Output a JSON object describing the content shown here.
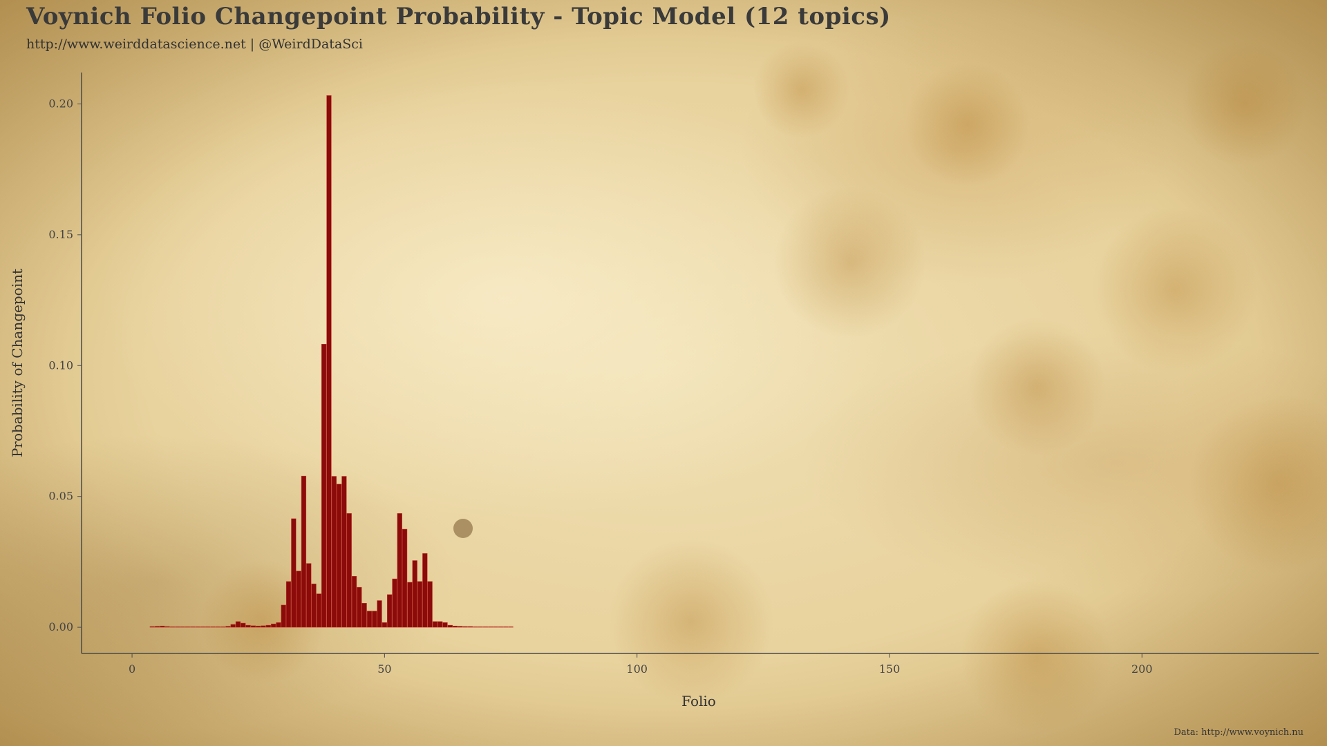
{
  "header": {
    "title": "Voynich Folio Changepoint Probability - Topic Model (12 topics)",
    "subtitle": "http://www.weirddatascience.net | @WeirdDataSci"
  },
  "footer": {
    "caption": "Data: http://www.voynich.nu"
  },
  "colors": {
    "bar_fill": "#8b0a0a",
    "bar_stroke": "#c0392b",
    "axis": "#4a4a4a",
    "text": "#333333"
  },
  "chart_data": {
    "type": "bar",
    "title": "Voynich Folio Changepoint Probability - Topic Model (12 topics)",
    "xlabel": "Folio",
    "ylabel": "Probability of Changepoint",
    "xlim": [
      -10,
      235
    ],
    "ylim": [
      -0.01,
      0.212
    ],
    "xticks": [
      {
        "value": 0,
        "label": "0"
      },
      {
        "value": 50,
        "label": "50"
      },
      {
        "value": 100,
        "label": "100"
      },
      {
        "value": 150,
        "label": "150"
      },
      {
        "value": 200,
        "label": "200"
      }
    ],
    "yticks": [
      {
        "value": 0.0,
        "label": "0.00"
      },
      {
        "value": 0.05,
        "label": "0.05"
      },
      {
        "value": 0.1,
        "label": "0.10"
      },
      {
        "value": 0.15,
        "label": "0.15"
      },
      {
        "value": 0.2,
        "label": "0.20"
      }
    ],
    "grid": false,
    "legend": "none",
    "x": [
      4,
      5,
      6,
      7,
      8,
      9,
      10,
      11,
      12,
      13,
      14,
      15,
      16,
      17,
      18,
      19,
      20,
      21,
      22,
      23,
      24,
      25,
      26,
      27,
      28,
      29,
      30,
      31,
      32,
      33,
      34,
      35,
      36,
      37,
      38,
      39,
      40,
      41,
      42,
      43,
      44,
      45,
      46,
      47,
      48,
      49,
      50,
      51,
      52,
      53,
      54,
      55,
      56,
      57,
      58,
      59,
      60,
      61,
      62,
      63,
      64,
      65,
      66,
      67,
      68,
      69,
      70,
      71,
      72,
      73,
      74,
      75
    ],
    "values": [
      0.0003,
      0.0004,
      0.0005,
      0.0003,
      0.0002,
      0.0002,
      0.0002,
      0.0002,
      0.0002,
      0.0002,
      0.0002,
      0.0002,
      0.0002,
      0.0002,
      0.0002,
      0.0004,
      0.0011,
      0.0022,
      0.0016,
      0.0008,
      0.0006,
      0.0005,
      0.0006,
      0.0008,
      0.0013,
      0.0018,
      0.0085,
      0.0175,
      0.0415,
      0.0215,
      0.0578,
      0.0244,
      0.0166,
      0.0128,
      0.1082,
      0.2032,
      0.0577,
      0.0547,
      0.0577,
      0.0435,
      0.0195,
      0.0153,
      0.0092,
      0.0062,
      0.0062,
      0.0102,
      0.0018,
      0.0125,
      0.0185,
      0.0435,
      0.0375,
      0.0172,
      0.0255,
      0.0175,
      0.0282,
      0.0175,
      0.0022,
      0.0022,
      0.0018,
      0.0008,
      0.0005,
      0.0004,
      0.0003,
      0.0003,
      0.0002,
      0.0002,
      0.0002,
      0.0002,
      0.0002,
      0.0002,
      0.0002,
      0.0002
    ]
  }
}
